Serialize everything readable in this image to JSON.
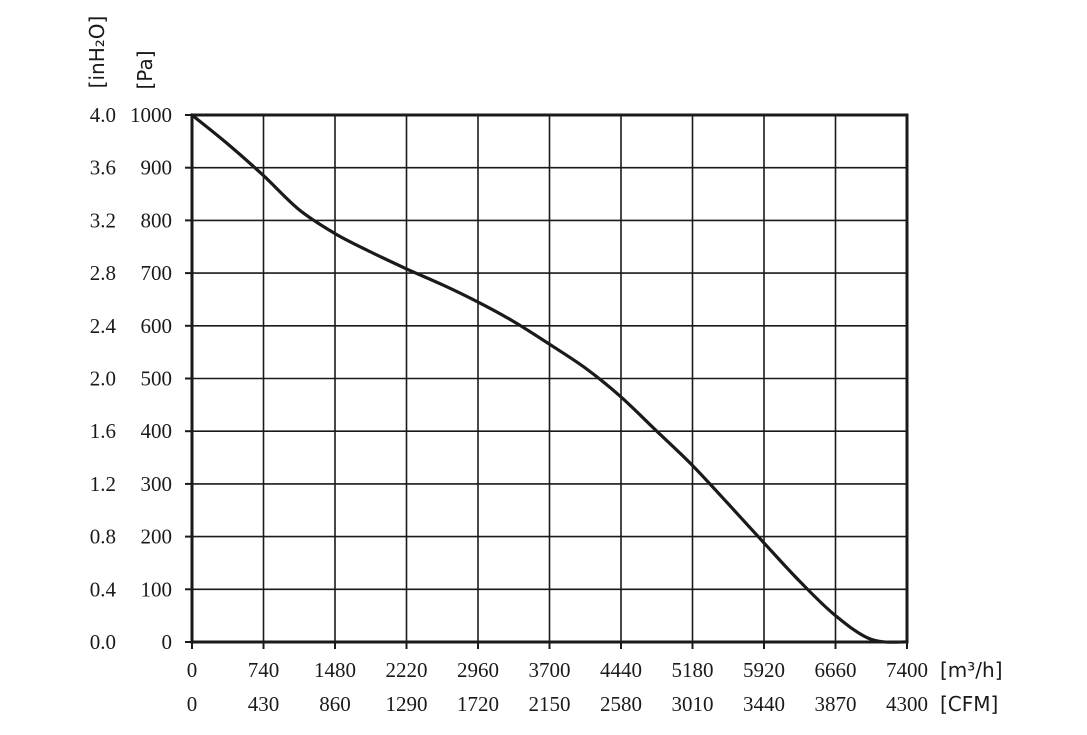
{
  "chart_data": {
    "type": "line",
    "title": "",
    "x_axis": {
      "primary_unit": "[m³/h]",
      "secondary_unit": "[CFM]",
      "range": [
        0,
        7400
      ],
      "ticks_primary": [
        "0",
        "740",
        "1480",
        "2220",
        "2960",
        "3700",
        "4440",
        "5180",
        "5920",
        "6660",
        "7400"
      ],
      "ticks_secondary": [
        "0",
        "430",
        "860",
        "1290",
        "1720",
        "2150",
        "2580",
        "3010",
        "3440",
        "3870",
        "4300"
      ]
    },
    "y_axis": {
      "primary_unit": "[Pa]",
      "secondary_unit": "[inH₂O]",
      "range": [
        0,
        1000
      ],
      "ticks_primary": [
        "0",
        "100",
        "200",
        "300",
        "400",
        "500",
        "600",
        "700",
        "800",
        "900",
        "1000"
      ],
      "ticks_secondary": [
        "0.0",
        "0.4",
        "0.8",
        "1.2",
        "1.6",
        "2.0",
        "2.4",
        "2.8",
        "3.2",
        "3.6",
        "4.0"
      ]
    },
    "grid": true,
    "series": [
      {
        "x": [
          0,
          370,
          740,
          1110,
          1480,
          1850,
          2220,
          2590,
          2960,
          3330,
          3700,
          4070,
          4440,
          4810,
          5180,
          5550,
          5920,
          6290,
          6660,
          7030,
          7400
        ],
        "y": [
          1000,
          945,
          885,
          820,
          775,
          740,
          708,
          678,
          645,
          608,
          565,
          520,
          465,
          400,
          335,
          262,
          188,
          115,
          50,
          5,
          0
        ]
      }
    ]
  }
}
